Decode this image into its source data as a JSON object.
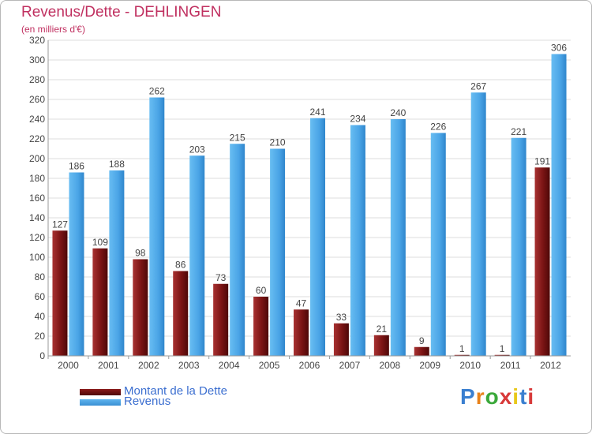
{
  "colors": {
    "debt": "#8b1a1a",
    "revenue": "#4ea8e8",
    "title": "#c03060",
    "legend_text": "#3c6fd0"
  },
  "header": {
    "title": "Revenus/Dette - DEHLINGEN",
    "subtitle": "(en milliers d'€)"
  },
  "legend": {
    "debt_label": "Montant de la Dette",
    "revenue_label": "Revenus"
  },
  "logo": {
    "text": "Proxiti"
  },
  "chart_data": {
    "type": "bar",
    "title": "Revenus/Dette - DEHLINGEN",
    "ylabel": "(en milliers d'€)",
    "xlabel": "",
    "ylim": [
      0,
      320
    ],
    "ytick_step": 20,
    "grid": true,
    "legend_position": "bottom-left",
    "categories": [
      "2000",
      "2001",
      "2002",
      "2003",
      "2004",
      "2005",
      "2006",
      "2007",
      "2008",
      "2009",
      "2010",
      "2011",
      "2012"
    ],
    "series": [
      {
        "name": "Montant de la Dette",
        "values": [
          127,
          109,
          98,
          86,
          73,
          60,
          47,
          33,
          21,
          9,
          1,
          1,
          191
        ]
      },
      {
        "name": "Revenus",
        "values": [
          186,
          188,
          262,
          203,
          215,
          210,
          241,
          234,
          240,
          226,
          267,
          221,
          306
        ]
      }
    ]
  }
}
